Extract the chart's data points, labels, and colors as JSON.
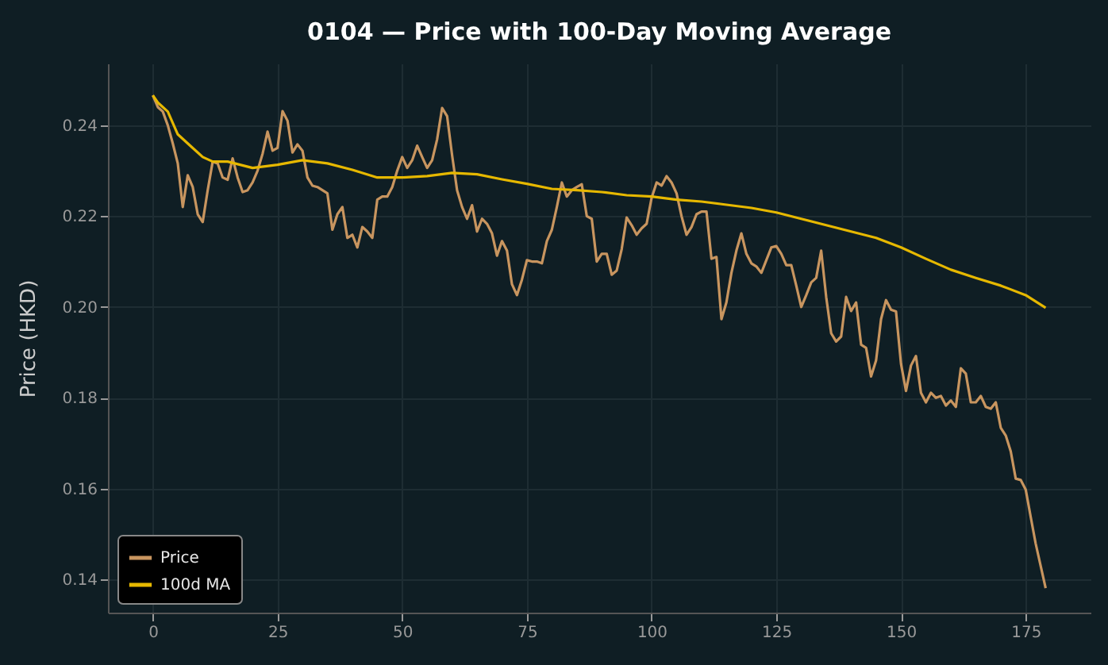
{
  "chart_data": {
    "type": "line",
    "title": "0104 — Price with 100-Day Moving Average",
    "ylabel": "Price (HKD)",
    "xlim": [
      -9,
      188
    ],
    "xticks": [
      0,
      25,
      50,
      75,
      100,
      125,
      150,
      175
    ],
    "ylim": [
      0.1327,
      0.2536
    ],
    "yticks": [
      0.14,
      0.16,
      0.18,
      {
        "value": 0.2,
        "label": "0.20"
      },
      0.22,
      0.24
    ],
    "grid": true,
    "legend": "bottom left",
    "line_style": "solid",
    "marker": "none",
    "series": [
      {
        "name": "Price",
        "color": "#c8955f",
        "x": [
          0,
          1,
          2,
          3,
          4,
          5,
          6,
          7,
          8,
          9,
          10,
          11,
          12,
          13,
          14,
          15,
          16,
          17,
          18,
          19,
          20,
          21,
          22,
          23,
          24,
          25,
          26,
          27,
          28,
          29,
          30,
          31,
          32,
          33,
          34,
          35,
          36,
          37,
          38,
          39,
          40,
          41,
          42,
          43,
          44,
          45,
          46,
          47,
          48,
          49,
          50,
          51,
          52,
          53,
          54,
          55,
          56,
          57,
          58,
          59,
          60,
          61,
          62,
          63,
          64,
          65,
          66,
          67,
          68,
          69,
          70,
          71,
          72,
          73,
          74,
          75,
          76,
          77,
          78,
          79,
          80,
          81,
          82,
          83,
          84,
          85,
          86,
          87,
          88,
          89,
          90,
          91,
          92,
          93,
          94,
          95,
          96,
          97,
          98,
          99,
          100,
          101,
          102,
          103,
          104,
          105,
          106,
          107,
          108,
          109,
          110,
          111,
          112,
          113,
          114,
          115,
          116,
          117,
          118,
          119,
          120,
          121,
          122,
          123,
          124,
          125,
          126,
          127,
          128,
          129,
          130,
          131,
          132,
          133,
          134,
          135,
          136,
          137,
          138,
          139,
          140,
          141,
          142,
          143,
          144,
          145,
          146,
          147,
          148,
          149,
          150,
          151,
          152,
          153,
          154,
          155,
          156,
          157,
          158,
          159,
          160,
          161,
          162,
          163,
          164,
          165,
          166,
          167,
          168,
          169,
          170,
          171,
          172,
          173,
          174,
          175,
          176,
          177,
          178,
          179
        ],
        "values": [
          0.2466,
          0.244,
          0.243,
          0.24,
          0.236,
          0.2316,
          0.222,
          0.229,
          0.2264,
          0.2204,
          0.2187,
          0.2257,
          0.232,
          0.2316,
          0.2285,
          0.228,
          0.2327,
          0.2285,
          0.2253,
          0.2257,
          0.2274,
          0.23,
          0.2337,
          0.2386,
          0.2344,
          0.235,
          0.2431,
          0.241,
          0.234,
          0.2358,
          0.2344,
          0.2285,
          0.2267,
          0.2264,
          0.2257,
          0.225,
          0.217,
          0.2204,
          0.222,
          0.2152,
          0.2159,
          0.2131,
          0.2176,
          0.2166,
          0.2152,
          0.2236,
          0.2243,
          0.2243,
          0.2264,
          0.23,
          0.233,
          0.2306,
          0.2323,
          0.2355,
          0.233,
          0.2306,
          0.2323,
          0.2369,
          0.2438,
          0.242,
          0.2334,
          0.2257,
          0.222,
          0.2194,
          0.2224,
          0.2166,
          0.2194,
          0.2183,
          0.2162,
          0.2113,
          0.2145,
          0.2124,
          0.205,
          0.2026,
          0.206,
          0.2103,
          0.21,
          0.21,
          0.2096,
          0.2145,
          0.217,
          0.222,
          0.2274,
          0.2243,
          0.2257,
          0.2264,
          0.227,
          0.22,
          0.2194,
          0.21,
          0.2117,
          0.2117,
          0.2071,
          0.208,
          0.2127,
          0.2197,
          0.218,
          0.2159,
          0.2173,
          0.2183,
          0.224,
          0.2274,
          0.2267,
          0.2288,
          0.2274,
          0.225,
          0.22,
          0.2159,
          0.2176,
          0.2204,
          0.221,
          0.221,
          0.2106,
          0.211,
          0.1973,
          0.201,
          0.2075,
          0.2124,
          0.2162,
          0.2117,
          0.2096,
          0.2089,
          0.2075,
          0.2103,
          0.2131,
          0.2134,
          0.2117,
          0.2092,
          0.2092,
          0.2047,
          0.2,
          0.2026,
          0.2054,
          0.2064,
          0.2124,
          0.2022,
          0.1942,
          0.1924,
          0.1935,
          0.2022,
          0.1991,
          0.201,
          0.1917,
          0.191,
          0.1847,
          0.1882,
          0.1973,
          0.2015,
          0.1994,
          0.199,
          0.1875,
          0.1815,
          0.1871,
          0.1892,
          0.1811,
          0.179,
          0.1811,
          0.18,
          0.1804,
          0.1783,
          0.1794,
          0.178,
          0.1865,
          0.1853,
          0.179,
          0.179,
          0.1804,
          0.178,
          0.1776,
          0.179,
          0.1734,
          0.1717,
          0.1682,
          0.1622,
          0.1619,
          0.1598,
          0.1538,
          0.1479,
          0.143,
          0.1381
        ]
      },
      {
        "name": "100d MA",
        "color": "#e6b800",
        "x": [
          0,
          1,
          3,
          5,
          6,
          8,
          10,
          12,
          15,
          20,
          25,
          30,
          35,
          40,
          45,
          50,
          55,
          60,
          65,
          70,
          75,
          80,
          85,
          90,
          95,
          100,
          105,
          110,
          115,
          120,
          125,
          130,
          135,
          140,
          145,
          150,
          155,
          160,
          165,
          170,
          175,
          179
        ],
        "values": [
          0.2466,
          0.245,
          0.243,
          0.238,
          0.237,
          0.235,
          0.233,
          0.232,
          0.232,
          0.2306,
          0.2313,
          0.2323,
          0.2316,
          0.2302,
          0.2285,
          0.2285,
          0.2288,
          0.2295,
          0.2292,
          0.2281,
          0.2271,
          0.226,
          0.2257,
          0.2253,
          0.2246,
          0.2243,
          0.2236,
          0.2232,
          0.2225,
          0.2218,
          0.2208,
          0.2194,
          0.218,
          0.2166,
          0.2152,
          0.2131,
          0.2106,
          0.2082,
          0.2064,
          0.2047,
          0.2026,
          0.1998
        ]
      }
    ]
  }
}
